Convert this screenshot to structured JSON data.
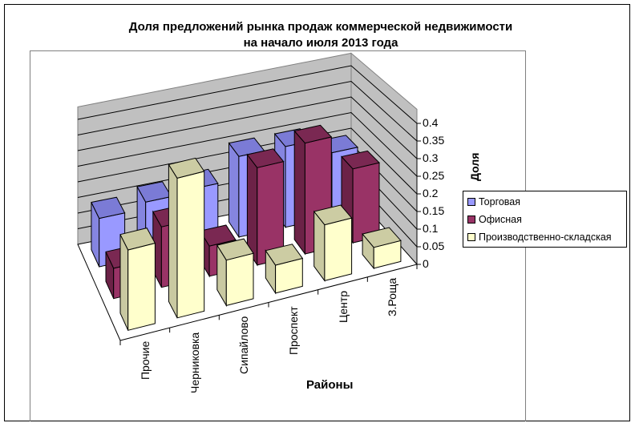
{
  "title": {
    "line1": "Доля предложений рынка продаж коммерческой недвижимости",
    "line2": "на начало июля 2013 года"
  },
  "axes": {
    "xlabel": "Районы",
    "ylabel": "Доля",
    "y_ticks": [
      "0",
      "0.05",
      "0.1",
      "0.15",
      "0.2",
      "0.25",
      "0.3",
      "0.35",
      "0.4"
    ]
  },
  "legend": [
    {
      "label": "Торговая",
      "color": "#9999FF"
    },
    {
      "label": "Офисная",
      "color": "#993366"
    },
    {
      "label": "Производственно-складская",
      "color": "#FFFFCC"
    }
  ],
  "chart_data": {
    "type": "bar",
    "subtype": "3d-column",
    "title": "Доля предложений рынка продаж коммерческой недвижимости на начало июля 2013 года",
    "xlabel": "Районы",
    "ylabel": "Доля",
    "ylim": [
      0,
      0.4
    ],
    "y_ticks": [
      0,
      0.05,
      0.1,
      0.15,
      0.2,
      0.25,
      0.3,
      0.35,
      0.4
    ],
    "grid": true,
    "legend_position": "right",
    "categories": [
      "Прочие",
      "Черниковка",
      "Сипайлово",
      "Проспект",
      "Центр",
      "З.Роща"
    ],
    "series": [
      {
        "name": "Торговая",
        "color": "#9999FF",
        "values": [
          0.15,
          0.17,
          0.18,
          0.25,
          0.25,
          0.2
        ]
      },
      {
        "name": "Офисная",
        "color": "#993366",
        "values": [
          0.09,
          0.18,
          0.09,
          0.29,
          0.33,
          0.22
        ]
      },
      {
        "name": "Производственно-складская",
        "color": "#FFFFCC",
        "values": [
          0.23,
          0.4,
          0.13,
          0.08,
          0.16,
          0.06
        ]
      }
    ]
  }
}
